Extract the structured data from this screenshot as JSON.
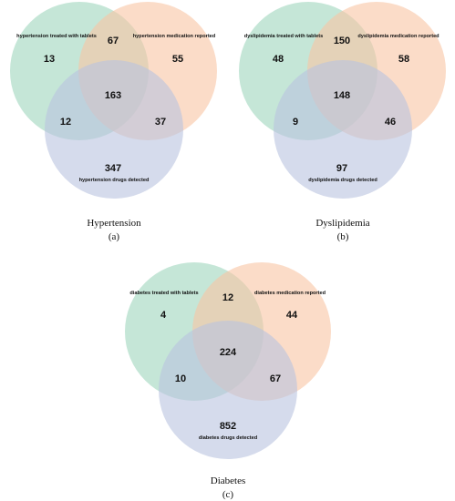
{
  "colors": {
    "set_a": "#9fd5bd",
    "set_b": "#f8c4a4",
    "set_c": "#b9c3e0"
  },
  "panels": [
    {
      "title": "Hypertension",
      "letter": "(a)",
      "labels": {
        "a": "hypertension treated with tablets",
        "b": "hypertension medication reported",
        "c": "hypertension drugs detected"
      },
      "counts": {
        "a_only": "13",
        "ab": "67",
        "b_only": "55",
        "abc": "163",
        "ac": "12",
        "bc": "37",
        "c_only": "347"
      }
    },
    {
      "title": "Dyslipidemia",
      "letter": "(b)",
      "labels": {
        "a": "dyslipidemia treated with tablets",
        "b": "dyslipidemia medication reported",
        "c": "dyslipidemia drugs detected"
      },
      "counts": {
        "a_only": "48",
        "ab": "150",
        "b_only": "58",
        "abc": "148",
        "ac": "9",
        "bc": "46",
        "c_only": "97"
      }
    },
    {
      "title": "Diabetes",
      "letter": "(c)",
      "labels": {
        "a": "diabetes treated with tablets",
        "b": "diabetes medication reported",
        "c": "diabetes drugs detected"
      },
      "counts": {
        "a_only": "4",
        "ab": "12",
        "b_only": "44",
        "abc": "224",
        "ac": "10",
        "bc": "67",
        "c_only": "852"
      }
    }
  ]
}
